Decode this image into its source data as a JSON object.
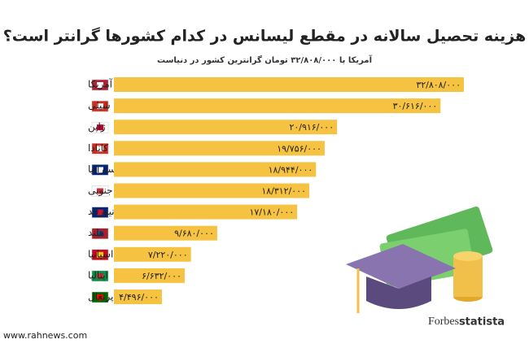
{
  "chart_data": {
    "type": "bar",
    "orientation": "horizontal",
    "title": "هزینه تحصیل سالانه در مقطع لیسانس در کدام کشورها گرانتر است؟",
    "subtitle": "آمریکا با ۳۲/۸۰۸/۰۰۰ تومان گرانترین کشور در دنیاست",
    "categories": [
      "ایالات متحده آمریکا",
      "شیلی",
      "ژاپن",
      "کانادا",
      "استرالیا",
      "کره جنوبی",
      "نیوزلند",
      "هلند",
      "اسپانیا",
      "ایتالیا",
      "پرتغال"
    ],
    "values": [
      32808000,
      30616000,
      20916000,
      19756000,
      18944000,
      18312000,
      17180000,
      9680000,
      7220000,
      6632000,
      4496000
    ],
    "value_labels": [
      "۳۲/۸۰۸/۰۰۰",
      "۳۰/۶۱۶/۰۰۰",
      "۲۰/۹۱۶/۰۰۰",
      "۱۹/۷۵۶/۰۰۰",
      "۱۸/۹۴۴/۰۰۰",
      "۱۸/۳۱۲/۰۰۰",
      "۱۷/۱۸۰/۰۰۰",
      "۹/۶۸۰/۰۰۰",
      "۷/۲۲۰/۰۰۰",
      "۶/۶۳۲/۰۰۰",
      "۴/۴۹۶/۰۰۰"
    ],
    "color": "#f5c242",
    "source": [
      "Forbes",
      "statista"
    ],
    "website": "www.rahnews.com"
  }
}
